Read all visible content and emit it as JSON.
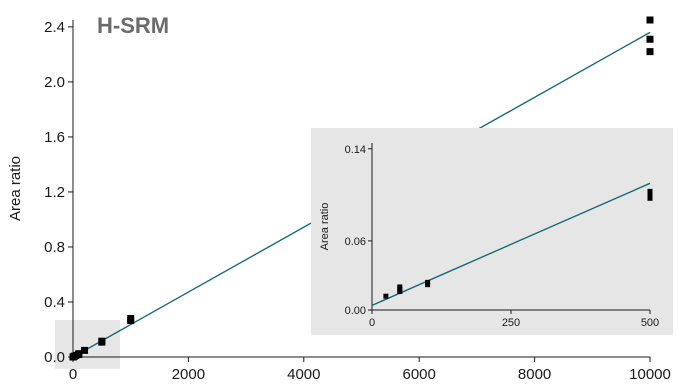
{
  "chart_data": [
    {
      "type": "scatter",
      "title": "H-SRM",
      "xlabel": "",
      "ylabel": "Area ratio",
      "xlim": [
        0,
        10000
      ],
      "ylim": [
        0,
        2.45
      ],
      "x_ticks": [
        "0",
        "2000",
        "4000",
        "6000",
        "8000",
        "10000"
      ],
      "y_ticks": [
        "0.0",
        "0.4",
        "0.8",
        "1.2",
        "1.6",
        "2.0",
        "2.4"
      ],
      "grid": false,
      "zoom_region": {
        "x": [
          0,
          500
        ],
        "y": [
          0,
          0.14
        ],
        "color": "#e6e6e6"
      },
      "series": [
        {
          "points": [
            [
              0,
              0.0
            ],
            [
              10,
              0.002
            ],
            [
              20,
              0.005
            ],
            [
              25,
              0.006
            ],
            [
              50,
              0.012
            ],
            [
              100,
              0.018
            ],
            [
              100,
              0.024
            ],
            [
              200,
              0.048
            ],
            [
              500,
              0.115
            ],
            [
              500,
              0.108
            ],
            [
              1000,
              0.28
            ],
            [
              1000,
              0.265
            ],
            [
              10000,
              2.45
            ],
            [
              10000,
              2.31
            ],
            [
              10000,
              2.22
            ]
          ]
        }
      ],
      "fit_line": {
        "x": [
          0,
          10000
        ],
        "y": [
          0,
          2.36
        ],
        "color": "#17697a"
      }
    },
    {
      "type": "scatter",
      "inset": true,
      "title": "",
      "xlabel": "",
      "ylabel": "Area ratio",
      "xlim": [
        0,
        500
      ],
      "ylim": [
        0,
        0.145
      ],
      "x_ticks": [
        "0",
        "250",
        "500"
      ],
      "y_ticks": [
        "0.00",
        "0.06",
        "0.14"
      ],
      "background": "#e6e6e6",
      "series": [
        {
          "points": [
            [
              25,
              0.012
            ],
            [
              50,
              0.02
            ],
            [
              50,
              0.018
            ],
            [
              50,
              0.016
            ],
            [
              100,
              0.024
            ],
            [
              100,
              0.022
            ],
            [
              500,
              0.103
            ],
            [
              500,
              0.1
            ],
            [
              500,
              0.097
            ]
          ]
        }
      ],
      "fit_line": {
        "x": [
          0,
          500
        ],
        "y": [
          0.004,
          0.11
        ],
        "color": "#17697a"
      }
    }
  ]
}
